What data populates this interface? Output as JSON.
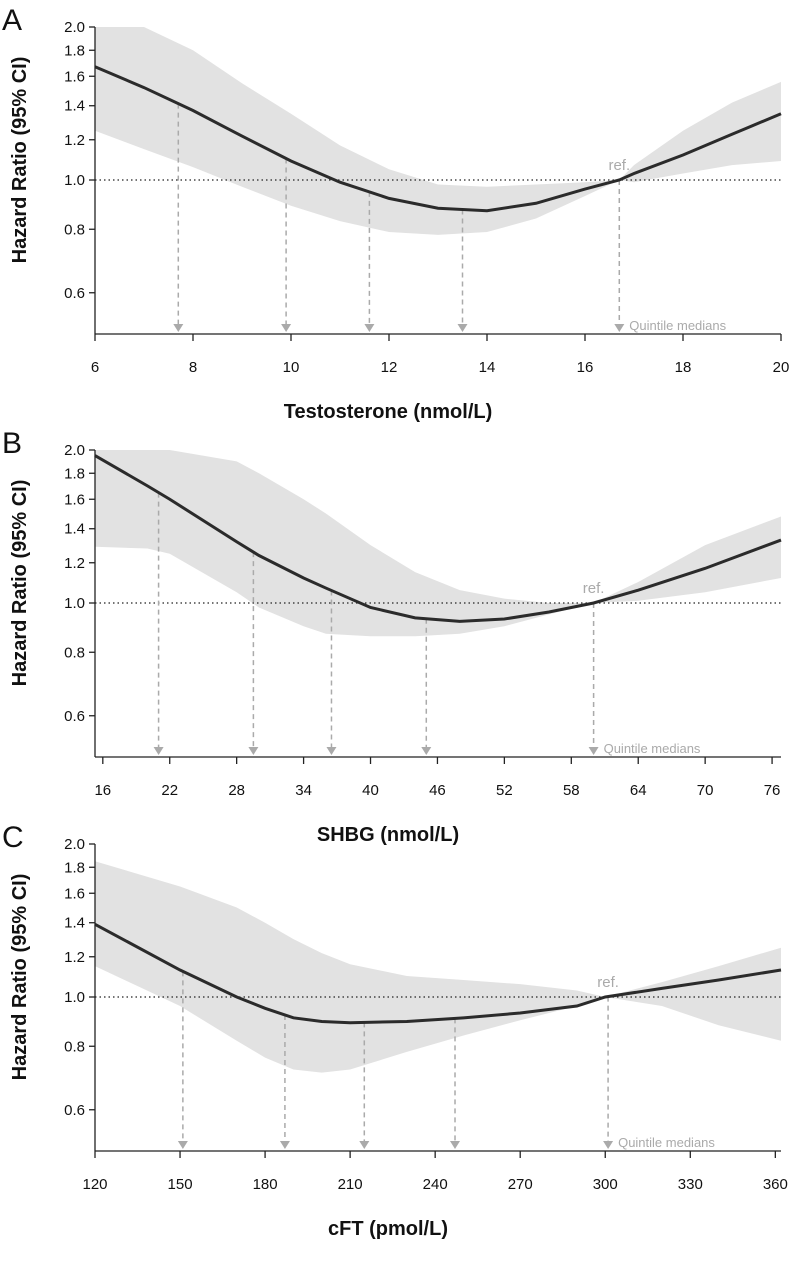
{
  "chart_data": [
    {
      "type": "line",
      "panel_label": "A",
      "xlabel": "Testosterone (nmol/L)",
      "ylabel": "Hazard Ratio (95% CI)",
      "log_y": true,
      "grid": false,
      "color": "#2b2b2b",
      "band_color": "#e2e2e2",
      "xlim": [
        6,
        20
      ],
      "ylim": [
        0.5,
        2.0
      ],
      "xticks": [
        6,
        8,
        10,
        12,
        14,
        16,
        18,
        20
      ],
      "yticks": [
        0.6,
        0.8,
        {
          "value": 1.0,
          "label": "1.0"
        },
        1.2,
        1.4,
        1.6,
        1.8,
        {
          "value": 2.0,
          "label": "2.0"
        }
      ],
      "x": [
        6,
        7,
        8,
        9,
        10,
        11,
        12,
        13,
        14,
        15,
        16,
        16.7,
        17,
        18,
        19,
        20
      ],
      "values": [
        1.67,
        1.52,
        1.37,
        1.22,
        1.09,
        0.99,
        0.92,
        0.88,
        0.87,
        0.9,
        0.96,
        1.0,
        1.03,
        1.12,
        1.23,
        1.35
      ],
      "ci_upper": [
        2.0,
        2.0,
        1.8,
        1.55,
        1.35,
        1.17,
        1.05,
        0.98,
        0.97,
        0.98,
        0.99,
        1.0,
        1.07,
        1.25,
        1.42,
        1.56
      ],
      "ci_lower": [
        1.25,
        1.15,
        1.06,
        0.97,
        0.89,
        0.83,
        0.79,
        0.78,
        0.79,
        0.84,
        0.93,
        1.0,
        0.99,
        1.03,
        1.07,
        1.09
      ],
      "quintile_medians": [
        7.7,
        9.9,
        11.6,
        13.5,
        16.7
      ],
      "quintile_label": "Quintile medians",
      "reference_value": 1.0,
      "reference_label": "ref."
    },
    {
      "type": "line",
      "panel_label": "B",
      "xlabel": "SHBG (nmol/L)",
      "ylabel": "Hazard Ratio (95% CI)",
      "log_y": true,
      "grid": false,
      "color": "#2b2b2b",
      "band_color": "#e2e2e2",
      "xlim": [
        15.3,
        76.8
      ],
      "ylim": [
        0.5,
        2.0
      ],
      "xticks": [
        16,
        22,
        28,
        34,
        40,
        46,
        52,
        58,
        64,
        70,
        76
      ],
      "yticks": [
        0.6,
        0.8,
        {
          "value": 1.0,
          "label": "1.0"
        },
        1.2,
        1.4,
        1.6,
        1.8,
        {
          "value": 2.0,
          "label": "2.0"
        }
      ],
      "x": [
        15.3,
        20,
        22,
        28,
        30,
        34,
        36,
        40,
        44,
        48,
        52,
        56,
        60,
        64,
        70,
        76.8
      ],
      "values": [
        1.95,
        1.7,
        1.6,
        1.32,
        1.24,
        1.12,
        1.07,
        0.98,
        0.935,
        0.92,
        0.93,
        0.96,
        1.0,
        1.06,
        1.17,
        1.33
      ],
      "ci_upper": [
        2.0,
        2.0,
        2.0,
        1.9,
        1.8,
        1.6,
        1.5,
        1.3,
        1.15,
        1.06,
        1.02,
        1.0,
        1.0,
        1.1,
        1.3,
        1.48
      ],
      "ci_lower": [
        1.29,
        1.28,
        1.25,
        1.05,
        0.98,
        0.9,
        0.87,
        0.86,
        0.86,
        0.87,
        0.9,
        0.95,
        1.0,
        1.01,
        1.05,
        1.12
      ],
      "quintile_medians": [
        21,
        29.5,
        36.5,
        45,
        60
      ],
      "quintile_label": "Quintile medians",
      "reference_value": 1.0,
      "reference_label": "ref."
    },
    {
      "type": "line",
      "panel_label": "C",
      "xlabel": "cFT (pmol/L)",
      "ylabel": "Hazard Ratio (95% CI)",
      "log_y": true,
      "grid": false,
      "color": "#2b2b2b",
      "band_color": "#e2e2e2",
      "xlim": [
        120,
        362
      ],
      "ylim": [
        0.5,
        2.0
      ],
      "xticks": [
        120,
        150,
        180,
        210,
        240,
        270,
        300,
        330,
        360
      ],
      "yticks": [
        0.6,
        0.8,
        {
          "value": 1.0,
          "label": "1.0"
        },
        1.2,
        1.4,
        1.6,
        1.8,
        {
          "value": 2.0,
          "label": "2.0"
        }
      ],
      "x": [
        120,
        150,
        170,
        180,
        190,
        200,
        210,
        230,
        250,
        270,
        290,
        300,
        320,
        340,
        362
      ],
      "values": [
        1.39,
        1.13,
        1.0,
        0.95,
        0.91,
        0.895,
        0.89,
        0.895,
        0.91,
        0.93,
        0.96,
        1.0,
        1.04,
        1.08,
        1.13
      ],
      "ci_upper": [
        1.85,
        1.65,
        1.5,
        1.4,
        1.3,
        1.22,
        1.16,
        1.1,
        1.08,
        1.06,
        1.03,
        1.0,
        1.07,
        1.15,
        1.25
      ],
      "ci_lower": [
        1.15,
        0.96,
        0.82,
        0.76,
        0.72,
        0.71,
        0.72,
        0.78,
        0.84,
        0.9,
        0.96,
        1.0,
        0.96,
        0.88,
        0.82
      ],
      "quintile_medians": [
        151,
        187,
        215,
        247,
        301
      ],
      "quintile_label": "Quintile medians",
      "reference_value": 1.0,
      "reference_label": "ref."
    }
  ]
}
